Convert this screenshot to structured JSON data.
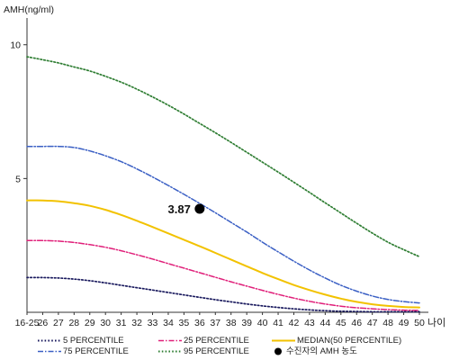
{
  "chart_data": {
    "type": "line",
    "ylabel": "AMH(ng/ml)",
    "xlabel": "나이",
    "ylim": [
      0,
      11
    ],
    "yticks": [
      5,
      10
    ],
    "categories": [
      "16-25",
      "26",
      "27",
      "28",
      "29",
      "30",
      "31",
      "32",
      "33",
      "34",
      "35",
      "36",
      "37",
      "38",
      "39",
      "40",
      "41",
      "42",
      "43",
      "44",
      "45",
      "46",
      "47",
      "48",
      "49",
      "50"
    ],
    "series": [
      {
        "name": "95 PERCENTILE",
        "color": "#2e7d32",
        "dash": "1.6,2.2",
        "width": 1.7,
        "values": [
          9.55,
          9.44,
          9.32,
          9.17,
          9.02,
          8.82,
          8.6,
          8.34,
          8.05,
          7.74,
          7.41,
          7.06,
          6.71,
          6.35,
          5.98,
          5.61,
          5.24,
          4.86,
          4.48,
          4.09,
          3.71,
          3.33,
          2.96,
          2.62,
          2.34,
          2.08
        ]
      },
      {
        "name": "75 PERCENTILE",
        "color": "#3a5fc4",
        "dash": "6,2,1.5,2",
        "width": 1.5,
        "values": [
          6.2,
          6.2,
          6.2,
          6.16,
          6.03,
          5.85,
          5.63,
          5.36,
          5.06,
          4.74,
          4.41,
          4.07,
          3.72,
          3.36,
          3.0,
          2.62,
          2.26,
          1.91,
          1.58,
          1.28,
          1.01,
          0.79,
          0.61,
          0.48,
          0.4,
          0.35
        ]
      },
      {
        "name": "MEDIAN(50 PERCENTILE)",
        "color": "#f2c200",
        "dash": "",
        "width": 2.0,
        "values": [
          4.18,
          4.18,
          4.15,
          4.08,
          3.98,
          3.83,
          3.64,
          3.42,
          3.19,
          2.95,
          2.71,
          2.47,
          2.22,
          1.97,
          1.72,
          1.47,
          1.24,
          1.02,
          0.83,
          0.66,
          0.51,
          0.39,
          0.3,
          0.24,
          0.2,
          0.18
        ]
      },
      {
        "name": "25 PERCENTILE",
        "color": "#e0207a",
        "dash": "6,2,1.5,2",
        "width": 1.5,
        "values": [
          2.68,
          2.68,
          2.66,
          2.61,
          2.53,
          2.43,
          2.3,
          2.15,
          1.99,
          1.82,
          1.65,
          1.48,
          1.31,
          1.14,
          0.98,
          0.82,
          0.67,
          0.53,
          0.41,
          0.31,
          0.23,
          0.17,
          0.13,
          0.1,
          0.08,
          0.07
        ]
      },
      {
        "name": "5 PERCENTILE",
        "color": "#1a1a5e",
        "dash": "1.6,2.2",
        "width": 1.7,
        "values": [
          1.3,
          1.3,
          1.28,
          1.24,
          1.18,
          1.1,
          1.01,
          0.92,
          0.83,
          0.74,
          0.65,
          0.56,
          0.47,
          0.39,
          0.31,
          0.24,
          0.18,
          0.13,
          0.09,
          0.06,
          0.04,
          0.03,
          0.02,
          0.02,
          0.02,
          0.02
        ]
      }
    ],
    "marker": {
      "name": "수진자의 AMH 농도",
      "x": "36",
      "y": 3.87,
      "label": "3.87",
      "color": "#000000"
    },
    "legend": [
      {
        "name": "5 PERCENTILE",
        "color": "#1a1a5e",
        "dash": "1.6,2.2"
      },
      {
        "name": "25 PERCENTILE",
        "color": "#e0207a",
        "dash": "6,2,1.5,2"
      },
      {
        "name": "MEDIAN(50 PERCENTILE)",
        "color": "#f2c200",
        "dash": ""
      },
      {
        "name": "75 PERCENTILE",
        "color": "#3a5fc4",
        "dash": "6,2,1.5,2"
      },
      {
        "name": "95 PERCENTILE",
        "color": "#2e7d32",
        "dash": "1.6,2.2"
      },
      {
        "name": "수진자의 AMH 농도",
        "color": "#000000",
        "dash": "dot"
      }
    ],
    "legend_position": "bottom",
    "grid": false
  }
}
